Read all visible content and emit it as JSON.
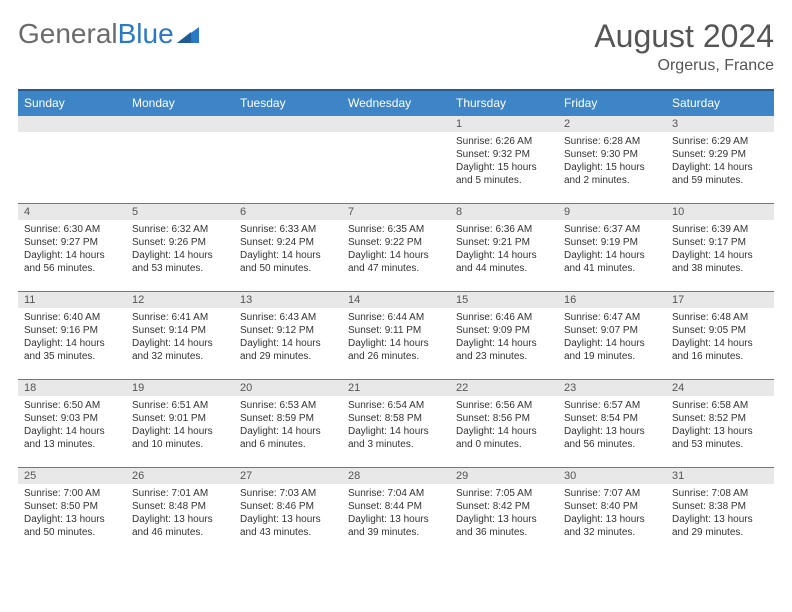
{
  "logo": {
    "part1": "General",
    "part2": "Blue"
  },
  "title": "August 2024",
  "location": "Orgerus, France",
  "colors": {
    "header_bg": "#3d85c6",
    "header_border": "#2a5a8a",
    "daynum_bg": "#e8e8e8",
    "cell_border": "#3d85c6",
    "text": "#333333",
    "title_text": "#555555",
    "logo_gray": "#6b6b6b",
    "logo_blue": "#2a79c4"
  },
  "weekdays": [
    "Sunday",
    "Monday",
    "Tuesday",
    "Wednesday",
    "Thursday",
    "Friday",
    "Saturday"
  ],
  "weeks": [
    [
      null,
      null,
      null,
      null,
      {
        "num": "1",
        "sunrise": "Sunrise: 6:26 AM",
        "sunset": "Sunset: 9:32 PM",
        "day1": "Daylight: 15 hours",
        "day2": "and 5 minutes."
      },
      {
        "num": "2",
        "sunrise": "Sunrise: 6:28 AM",
        "sunset": "Sunset: 9:30 PM",
        "day1": "Daylight: 15 hours",
        "day2": "and 2 minutes."
      },
      {
        "num": "3",
        "sunrise": "Sunrise: 6:29 AM",
        "sunset": "Sunset: 9:29 PM",
        "day1": "Daylight: 14 hours",
        "day2": "and 59 minutes."
      }
    ],
    [
      {
        "num": "4",
        "sunrise": "Sunrise: 6:30 AM",
        "sunset": "Sunset: 9:27 PM",
        "day1": "Daylight: 14 hours",
        "day2": "and 56 minutes."
      },
      {
        "num": "5",
        "sunrise": "Sunrise: 6:32 AM",
        "sunset": "Sunset: 9:26 PM",
        "day1": "Daylight: 14 hours",
        "day2": "and 53 minutes."
      },
      {
        "num": "6",
        "sunrise": "Sunrise: 6:33 AM",
        "sunset": "Sunset: 9:24 PM",
        "day1": "Daylight: 14 hours",
        "day2": "and 50 minutes."
      },
      {
        "num": "7",
        "sunrise": "Sunrise: 6:35 AM",
        "sunset": "Sunset: 9:22 PM",
        "day1": "Daylight: 14 hours",
        "day2": "and 47 minutes."
      },
      {
        "num": "8",
        "sunrise": "Sunrise: 6:36 AM",
        "sunset": "Sunset: 9:21 PM",
        "day1": "Daylight: 14 hours",
        "day2": "and 44 minutes."
      },
      {
        "num": "9",
        "sunrise": "Sunrise: 6:37 AM",
        "sunset": "Sunset: 9:19 PM",
        "day1": "Daylight: 14 hours",
        "day2": "and 41 minutes."
      },
      {
        "num": "10",
        "sunrise": "Sunrise: 6:39 AM",
        "sunset": "Sunset: 9:17 PM",
        "day1": "Daylight: 14 hours",
        "day2": "and 38 minutes."
      }
    ],
    [
      {
        "num": "11",
        "sunrise": "Sunrise: 6:40 AM",
        "sunset": "Sunset: 9:16 PM",
        "day1": "Daylight: 14 hours",
        "day2": "and 35 minutes."
      },
      {
        "num": "12",
        "sunrise": "Sunrise: 6:41 AM",
        "sunset": "Sunset: 9:14 PM",
        "day1": "Daylight: 14 hours",
        "day2": "and 32 minutes."
      },
      {
        "num": "13",
        "sunrise": "Sunrise: 6:43 AM",
        "sunset": "Sunset: 9:12 PM",
        "day1": "Daylight: 14 hours",
        "day2": "and 29 minutes."
      },
      {
        "num": "14",
        "sunrise": "Sunrise: 6:44 AM",
        "sunset": "Sunset: 9:11 PM",
        "day1": "Daylight: 14 hours",
        "day2": "and 26 minutes."
      },
      {
        "num": "15",
        "sunrise": "Sunrise: 6:46 AM",
        "sunset": "Sunset: 9:09 PM",
        "day1": "Daylight: 14 hours",
        "day2": "and 23 minutes."
      },
      {
        "num": "16",
        "sunrise": "Sunrise: 6:47 AM",
        "sunset": "Sunset: 9:07 PM",
        "day1": "Daylight: 14 hours",
        "day2": "and 19 minutes."
      },
      {
        "num": "17",
        "sunrise": "Sunrise: 6:48 AM",
        "sunset": "Sunset: 9:05 PM",
        "day1": "Daylight: 14 hours",
        "day2": "and 16 minutes."
      }
    ],
    [
      {
        "num": "18",
        "sunrise": "Sunrise: 6:50 AM",
        "sunset": "Sunset: 9:03 PM",
        "day1": "Daylight: 14 hours",
        "day2": "and 13 minutes."
      },
      {
        "num": "19",
        "sunrise": "Sunrise: 6:51 AM",
        "sunset": "Sunset: 9:01 PM",
        "day1": "Daylight: 14 hours",
        "day2": "and 10 minutes."
      },
      {
        "num": "20",
        "sunrise": "Sunrise: 6:53 AM",
        "sunset": "Sunset: 8:59 PM",
        "day1": "Daylight: 14 hours",
        "day2": "and 6 minutes."
      },
      {
        "num": "21",
        "sunrise": "Sunrise: 6:54 AM",
        "sunset": "Sunset: 8:58 PM",
        "day1": "Daylight: 14 hours",
        "day2": "and 3 minutes."
      },
      {
        "num": "22",
        "sunrise": "Sunrise: 6:56 AM",
        "sunset": "Sunset: 8:56 PM",
        "day1": "Daylight: 14 hours",
        "day2": "and 0 minutes."
      },
      {
        "num": "23",
        "sunrise": "Sunrise: 6:57 AM",
        "sunset": "Sunset: 8:54 PM",
        "day1": "Daylight: 13 hours",
        "day2": "and 56 minutes."
      },
      {
        "num": "24",
        "sunrise": "Sunrise: 6:58 AM",
        "sunset": "Sunset: 8:52 PM",
        "day1": "Daylight: 13 hours",
        "day2": "and 53 minutes."
      }
    ],
    [
      {
        "num": "25",
        "sunrise": "Sunrise: 7:00 AM",
        "sunset": "Sunset: 8:50 PM",
        "day1": "Daylight: 13 hours",
        "day2": "and 50 minutes."
      },
      {
        "num": "26",
        "sunrise": "Sunrise: 7:01 AM",
        "sunset": "Sunset: 8:48 PM",
        "day1": "Daylight: 13 hours",
        "day2": "and 46 minutes."
      },
      {
        "num": "27",
        "sunrise": "Sunrise: 7:03 AM",
        "sunset": "Sunset: 8:46 PM",
        "day1": "Daylight: 13 hours",
        "day2": "and 43 minutes."
      },
      {
        "num": "28",
        "sunrise": "Sunrise: 7:04 AM",
        "sunset": "Sunset: 8:44 PM",
        "day1": "Daylight: 13 hours",
        "day2": "and 39 minutes."
      },
      {
        "num": "29",
        "sunrise": "Sunrise: 7:05 AM",
        "sunset": "Sunset: 8:42 PM",
        "day1": "Daylight: 13 hours",
        "day2": "and 36 minutes."
      },
      {
        "num": "30",
        "sunrise": "Sunrise: 7:07 AM",
        "sunset": "Sunset: 8:40 PM",
        "day1": "Daylight: 13 hours",
        "day2": "and 32 minutes."
      },
      {
        "num": "31",
        "sunrise": "Sunrise: 7:08 AM",
        "sunset": "Sunset: 8:38 PM",
        "day1": "Daylight: 13 hours",
        "day2": "and 29 minutes."
      }
    ]
  ]
}
